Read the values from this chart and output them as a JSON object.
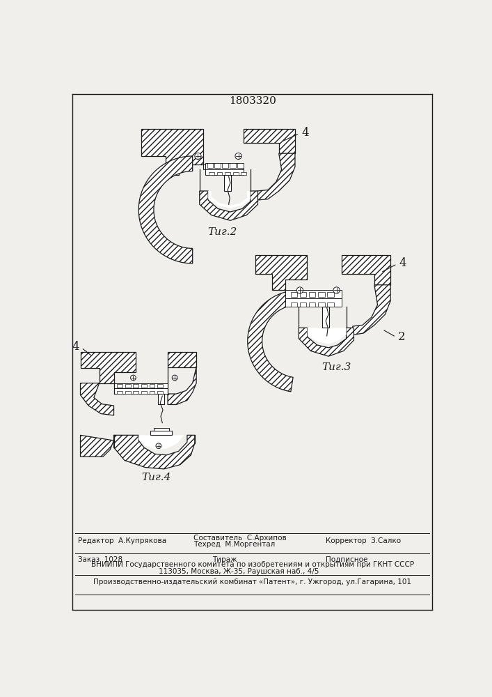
{
  "patent_number": "1803320",
  "fig2_label": "Τиг.2",
  "fig3_label": "Τиг.3",
  "fig4_label": "Τиг.4",
  "editor_line": "Редактор  А.Купрякова",
  "composer_line": "Составитель  С.Архипов",
  "techred_line": "Техред  М.Моргентал",
  "corrector_line": "Корректор  З.Салко",
  "order_line": "Заказ  1028",
  "tirazh_line": "Тираж",
  "podpisnoe_line": "Подписное",
  "vniiipi_line": "ВНИИПИ Государственного комитета по изобретениям и открытиям при ГКНТ СССР",
  "address_line": "113035, Москва, Ж-35, Раушская наб., 4/5",
  "publisher_line": "Производственно-издательский комбинат «Патент», г. Ужгород, ул.Гагарина, 101",
  "bg_color": "#f0efeb",
  "line_color": "#1a1a1a"
}
